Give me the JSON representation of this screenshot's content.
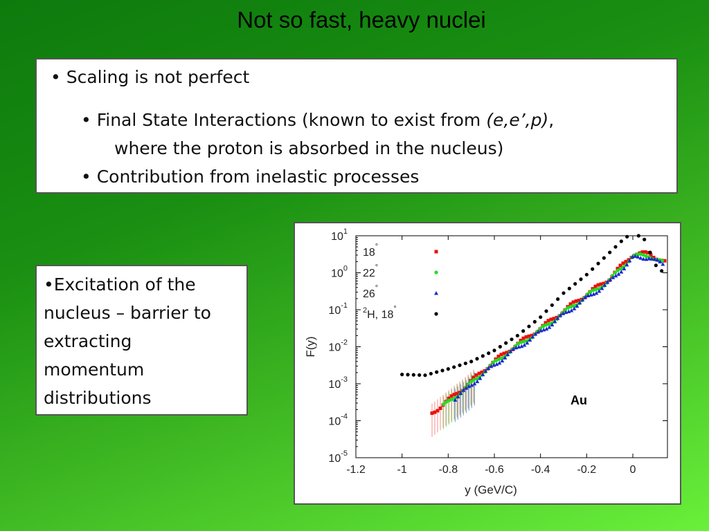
{
  "slide": {
    "title": "Not so fast, heavy nuclei"
  },
  "box1": {
    "bullet1": "Scaling is not perfect",
    "bullet2_a": "Final State Interactions (known to exist from ",
    "bullet2_italic": "(e,e’,p)",
    "bullet2_b": ",",
    "bullet2_c": "where the proton is absorbed in the nucleus)",
    "bullet3": "Contribution from inelastic processes"
  },
  "box2": {
    "line1": "Excitation of the",
    "line2": "nucleus – barrier to",
    "line3": "extracting",
    "line4": "momentum",
    "line5": "distributions"
  },
  "chart_data": {
    "type": "scatter",
    "title": "",
    "xlabel": "y  (GeV/C)",
    "ylabel": "F(y)",
    "xlim": [
      -1.2,
      0.15
    ],
    "ylim_log10": [
      -5,
      1
    ],
    "yscale": "log",
    "xticks": [
      "-1.2",
      "-1",
      "-0.8",
      "-0.6",
      "-0.4",
      "-0.2",
      "0"
    ],
    "ytick_exponents": [
      "1",
      "0",
      "-1",
      "-2",
      "-3",
      "-4",
      "-5"
    ],
    "annotation": "Au",
    "legend_position": "top-left",
    "series": [
      {
        "label": "18",
        "super": "°",
        "color": "#e8120c",
        "marker": "square"
      },
      {
        "label": "22",
        "super": "°",
        "color": "#22dd22",
        "marker": "circle"
      },
      {
        "label": "26",
        "super": "°",
        "color": "#1a2cc8",
        "marker": "triangle"
      },
      {
        "label_sup": "2",
        "label": "H, 18",
        "super": "°",
        "color": "#000000",
        "marker": "circle"
      }
    ]
  }
}
